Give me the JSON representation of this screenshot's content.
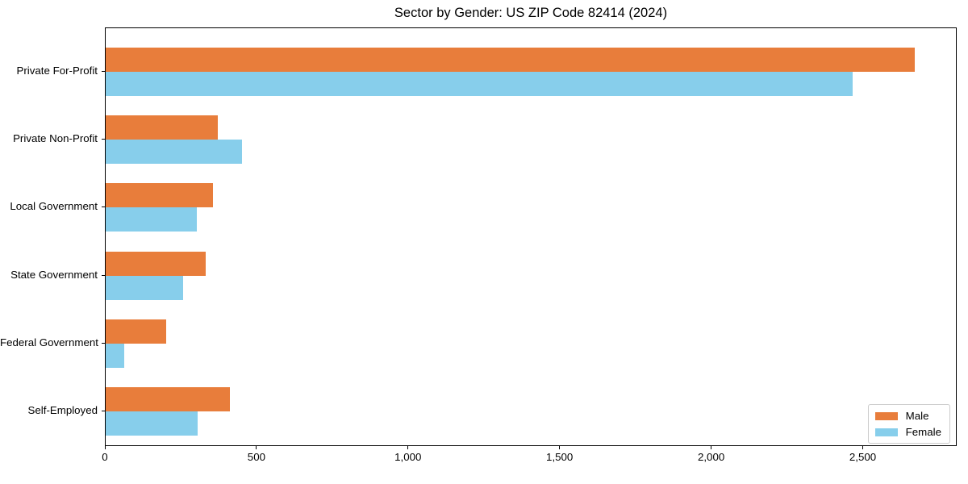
{
  "chart_data": {
    "type": "bar",
    "orientation": "horizontal",
    "title": "Sector by Gender: US ZIP Code 82414 (2024)",
    "categories": [
      "Private For-Profit",
      "Private Non-Profit",
      "Local Government",
      "State Government",
      "Federal Government",
      "Self-Employed"
    ],
    "series": [
      {
        "name": "Male",
        "color": "#e87d3b",
        "values": [
          2675,
          370,
          355,
          330,
          200,
          410
        ]
      },
      {
        "name": "Female",
        "color": "#87ceeb",
        "values": [
          2470,
          450,
          300,
          255,
          60,
          305
        ]
      }
    ],
    "xlabel": "",
    "ylabel": "",
    "xlim": [
      0,
      2810
    ],
    "x_ticks": [
      {
        "value": 0,
        "label": "0"
      },
      {
        "value": 500,
        "label": "500"
      },
      {
        "value": 1000,
        "label": "1,000"
      },
      {
        "value": 1500,
        "label": "1,500"
      },
      {
        "value": 2000,
        "label": "2,000"
      },
      {
        "value": 2500,
        "label": "2,500"
      }
    ],
    "legend": {
      "position": "lower-right",
      "entries": [
        "Male",
        "Female"
      ]
    },
    "grid": false,
    "frame": true,
    "axis_color": "#000000",
    "background_color": "#ffffff"
  }
}
